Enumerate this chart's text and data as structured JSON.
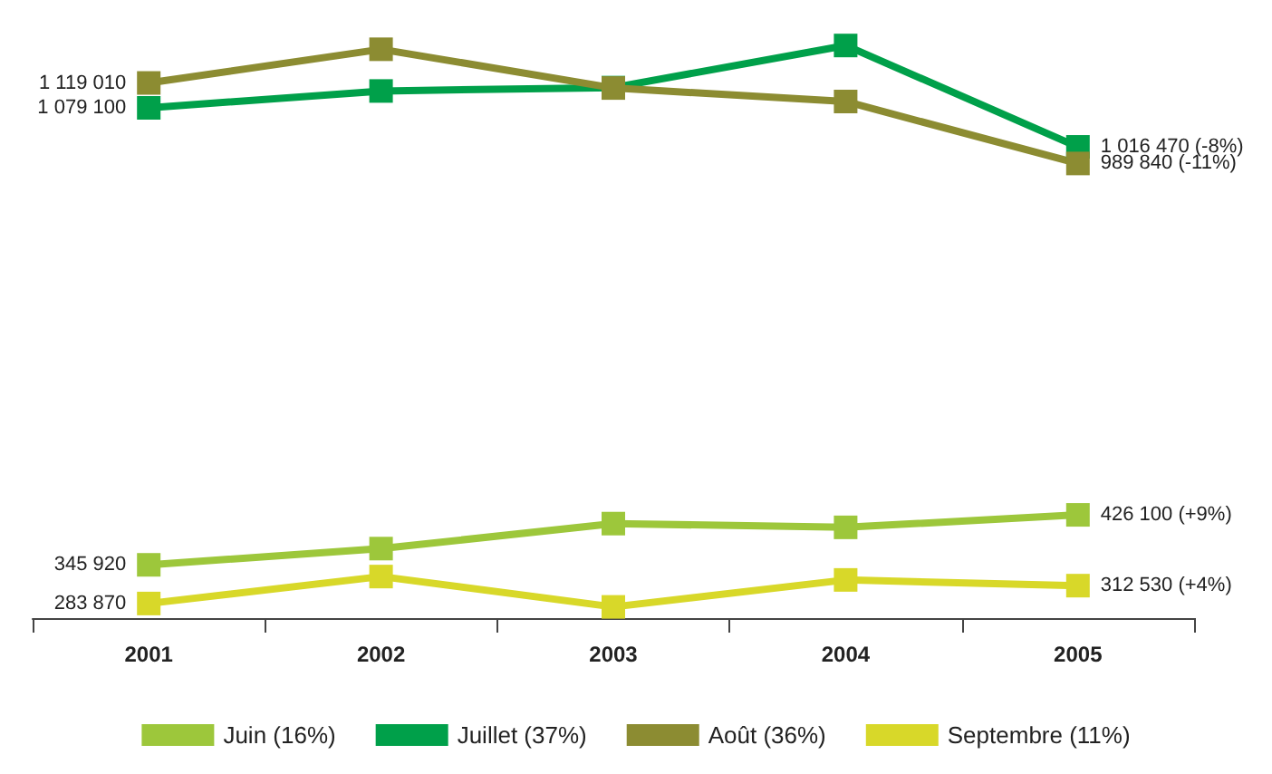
{
  "chart_data": {
    "type": "line",
    "categories": [
      "2001",
      "2002",
      "2003",
      "2004",
      "2005"
    ],
    "marker": "square",
    "line_style": "solid",
    "legend": "bottom",
    "grid": false,
    "tick_labels": "x",
    "series": [
      {
        "name": "Juin (16%)",
        "color": "#9dc73b",
        "values": [
          345920,
          371980,
          412070,
          406060,
          426100
        ],
        "value_labels": [
          "345 920",
          null,
          null,
          null,
          "426 100 (+9%)"
        ]
      },
      {
        "name": "Juillet (37%)",
        "color": "#00a04a",
        "values": [
          1079100,
          1106130,
          1111540,
          1179110,
          1016470
        ],
        "value_labels": [
          "1 079 100",
          null,
          null,
          null,
          "1 016 470 (-8%)"
        ]
      },
      {
        "name": "Août (36%)",
        "color": "#8c8c32",
        "values": [
          1119010,
          1173070,
          1110900,
          1089280,
          989840
        ],
        "value_labels": [
          "1 119 010",
          null,
          null,
          null,
          "989 840 (-11%)"
        ]
      },
      {
        "name": "Septembre (11%)",
        "color": "#d8d829",
        "values": [
          283870,
          327120,
          278460,
          321710,
          312530
        ],
        "value_labels": [
          "283 870",
          null,
          null,
          null,
          "312 530 (+4%)"
        ]
      }
    ]
  }
}
